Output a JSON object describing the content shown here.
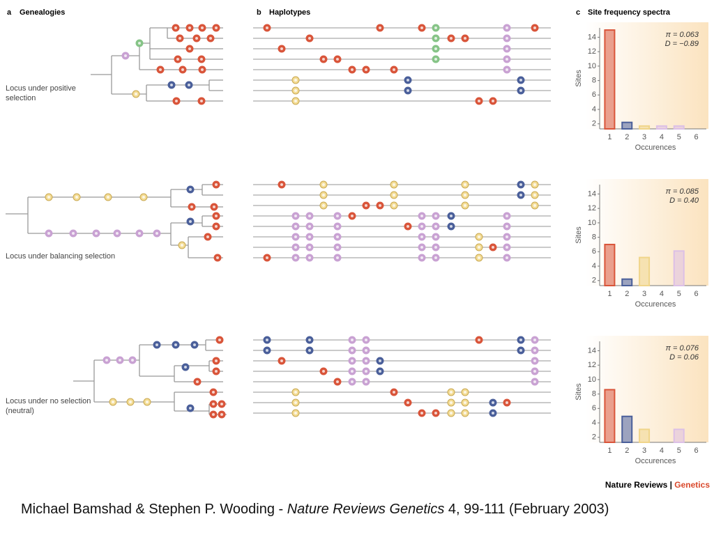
{
  "panels": [
    {
      "letter": "a",
      "title": "Genealogies"
    },
    {
      "letter": "b",
      "title": "Haplotypes"
    },
    {
      "letter": "c",
      "title": "Site frequency spectra"
    }
  ],
  "loci": [
    "Locus under positive selection",
    "Locus under balancing selection",
    "Locus under no selection (neutral)"
  ],
  "chart_data": [
    {
      "type": "bar",
      "categories": [
        1,
        2,
        3,
        4,
        5,
        6
      ],
      "values": [
        15,
        2.2,
        1.7,
        1.7,
        1.7,
        null
      ],
      "colors": [
        "#d9553a",
        "#4a5f9a",
        "#f0d58a",
        "#dcc0e6",
        "#dcc0e6"
      ],
      "xlabel": "Occurences",
      "ylabel": "Sites",
      "annotations": [
        "π = 0.063",
        "D = −0.89"
      ],
      "ylim": [
        1.3,
        15.3
      ],
      "yticks": [
        2,
        4,
        6,
        8,
        10,
        12,
        14
      ]
    },
    {
      "type": "bar",
      "categories": [
        1,
        2,
        3,
        4,
        5,
        6
      ],
      "values": [
        7,
        2.2,
        5.2,
        null,
        6.1,
        null
      ],
      "colors": [
        "#d9553a",
        "#4a5f9a",
        "#f0d58a",
        "#dcc0e6",
        "#dcc0e6"
      ],
      "xlabel": "Occurences",
      "ylabel": "Sites",
      "annotations": [
        "π = 0.085",
        "D = 0.40"
      ],
      "ylim": [
        1.3,
        15.3
      ],
      "yticks": [
        2,
        4,
        6,
        8,
        10,
        12,
        14
      ]
    },
    {
      "type": "bar",
      "categories": [
        1,
        2,
        3,
        4,
        5,
        6
      ],
      "values": [
        8.6,
        4.9,
        3.1,
        null,
        3.1,
        null
      ],
      "colors": [
        "#d9553a",
        "#4a5f9a",
        "#f0d58a",
        "#dcc0e6",
        "#dcc0e6"
      ],
      "xlabel": "Occurences",
      "ylabel": "Sites",
      "annotations": [
        "π = 0.076",
        "D = 0.06"
      ],
      "ylim": [
        1.3,
        15.3
      ],
      "yticks": [
        2,
        4,
        6,
        8,
        10,
        12,
        14
      ]
    }
  ],
  "footer": {
    "journal": "Nature Reviews",
    "separator": "|",
    "subject": "Genetics"
  },
  "caption": {
    "authors": "Michael Bamshad & Stephen P. Wooding - ",
    "journal": "Nature Reviews Genetics",
    "citation": " 4, 99-111 (February 2003)"
  }
}
